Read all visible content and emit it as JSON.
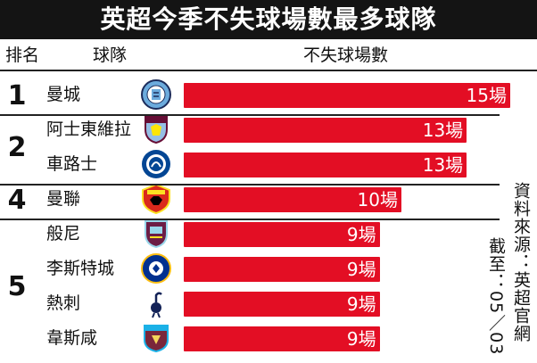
{
  "title": "英超今季不失球場數最多球隊",
  "headers": {
    "rank": "排名",
    "team": "球隊",
    "value": "不失球場數"
  },
  "value_unit": "場",
  "colors": {
    "bar": "#e30e24",
    "title_bg": "#141414",
    "text": "#111111"
  },
  "rank_groups": [
    {
      "rank": "1",
      "first_row": 0,
      "row_count": 1
    },
    {
      "rank": "2",
      "first_row": 1,
      "row_count": 2
    },
    {
      "rank": "4",
      "first_row": 3,
      "row_count": 1
    },
    {
      "rank": "5",
      "first_row": 4,
      "row_count": 4
    }
  ],
  "source": {
    "line1": "資料來源：英超官網",
    "line2": "截至：05／03"
  },
  "chart_data": {
    "type": "bar",
    "orientation": "horizontal",
    "title": "英超今季不失球場數最多球隊",
    "xlabel": "不失球場數",
    "ylabel": "球隊",
    "categories": [
      "曼城",
      "阿士東維拉",
      "車路士",
      "曼聯",
      "般尼",
      "李斯特城",
      "熱刺",
      "韋斯咸"
    ],
    "values": [
      15,
      13,
      13,
      10,
      9,
      9,
      9,
      9
    ],
    "ranks": [
      "1",
      "2",
      "2",
      "4",
      "5",
      "5",
      "5",
      "5"
    ],
    "data_labels": [
      "15場",
      "13場",
      "13場",
      "10場",
      "9場",
      "9場",
      "9場",
      "9場"
    ],
    "logos": [
      "man-city-crest-icon",
      "aston-villa-crest-icon",
      "chelsea-crest-icon",
      "man-utd-crest-icon",
      "burnley-crest-icon",
      "leicester-crest-icon",
      "tottenham-crest-icon",
      "west-ham-crest-icon"
    ],
    "xlim": [
      0,
      15
    ],
    "grid": false,
    "legend": "none"
  }
}
